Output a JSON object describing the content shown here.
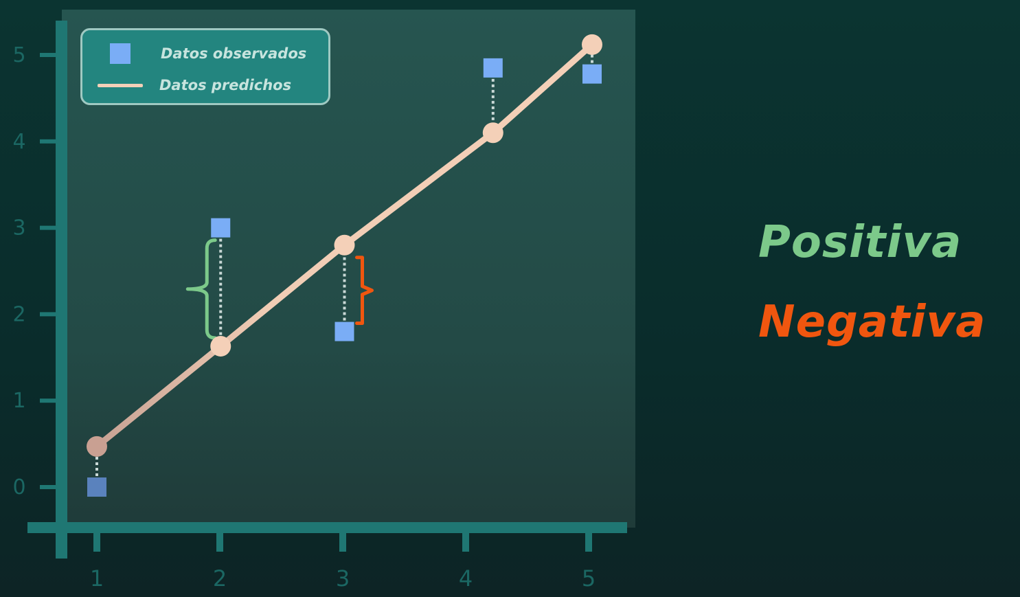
{
  "chart_data": {
    "type": "line",
    "x": [
      1,
      2,
      3,
      4,
      5
    ],
    "xlim": [
      0.95,
      5.1
    ],
    "ylim": [
      -0.45,
      5.4
    ],
    "x_ticks": [
      "1",
      "2",
      "3",
      "4",
      "5"
    ],
    "y_ticks": [
      "0",
      "1",
      "2",
      "3",
      "4",
      "5"
    ],
    "grid": false,
    "legend_position": "top-left",
    "series": [
      {
        "name": "Datos observados",
        "type": "scatter",
        "marker": "square",
        "color": "#7aadf6",
        "points": [
          [
            1.0,
            0.0
          ],
          [
            2.0,
            3.0
          ],
          [
            3.0,
            1.8
          ],
          [
            4.2,
            4.85
          ],
          [
            5.0,
            4.78
          ]
        ]
      },
      {
        "name": "Datos predichos",
        "type": "line",
        "marker": "circle",
        "color": "#f4d0b8",
        "points": [
          [
            1.0,
            0.47
          ],
          [
            2.0,
            1.63
          ],
          [
            3.0,
            2.8
          ],
          [
            4.2,
            4.1
          ],
          [
            5.0,
            5.12
          ]
        ]
      }
    ],
    "annotations": [
      {
        "kind": "residual-brace",
        "x": 2.0,
        "from": 1.63,
        "to": 3.0,
        "color": "#7cc98a"
      },
      {
        "kind": "residual-brace",
        "x": 3.0,
        "from": 1.8,
        "to": 2.8,
        "color": "#f0560f"
      }
    ]
  },
  "legend": {
    "observed_label": "Datos observados",
    "predicted_label": "Datos predichos"
  },
  "side_labels": {
    "positive": "Positiva",
    "negative": "Negativa"
  },
  "colors": {
    "background": "#0a2e2c",
    "plot_area": "#254f4a",
    "axis": "#1f7773",
    "tick_text": "#1b6763",
    "observed": "#7aadf6",
    "predicted": "#f4d0b8",
    "positive": "#7cc98a",
    "negative": "#f0560f",
    "residual_line": "#c9d8d6"
  }
}
